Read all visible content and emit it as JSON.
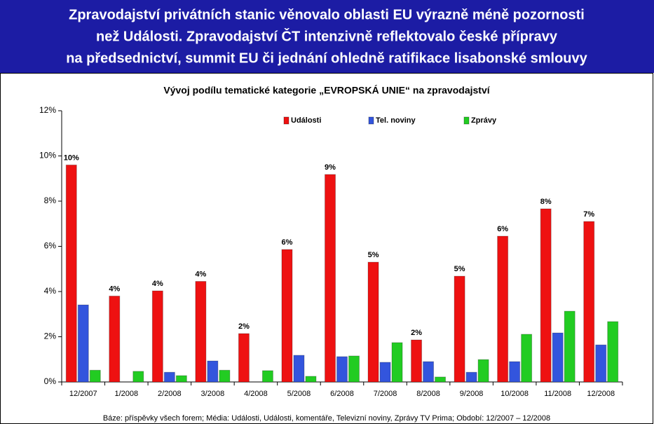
{
  "header": {
    "lines": [
      "Zpravodajství privátních stanic věnovalo oblasti EU výrazně méně pozornosti",
      "než Události. Zpravodajství ČT intenzivně reflektovalo české přípravy",
      "na předsednictví, summit EU či jednání ohledně ratifikace lisabonské smlouvy"
    ]
  },
  "chart_data": {
    "type": "bar",
    "title": "Vývoj podílu tematické kategorie „EVROPSKÁ UNIE“ na zpravodajství",
    "categories": [
      "12/2007",
      "1/2008",
      "2/2008",
      "3/2008",
      "4/2008",
      "5/2008",
      "6/2008",
      "7/2008",
      "8/2008",
      "9/2008",
      "10/2008",
      "11/2008",
      "12/2008"
    ],
    "series": [
      {
        "name": "Události",
        "color": "#ee1111",
        "values": [
          9.6,
          3.8,
          4.03,
          4.45,
          2.14,
          5.86,
          9.18,
          5.3,
          1.86,
          4.68,
          6.45,
          7.66,
          7.1
        ],
        "value_labels": [
          "10%",
          "4%",
          "4%",
          "4%",
          "2%",
          "6%",
          "9%",
          "5%",
          "2%",
          "5%",
          "6%",
          "8%",
          "7%"
        ]
      },
      {
        "name": "Tel. noviny",
        "color": "#3355dd",
        "values": [
          3.41,
          0,
          0.43,
          0.93,
          0,
          1.18,
          1.12,
          0.87,
          0.9,
          0.43,
          0.9,
          2.17,
          1.64
        ]
      },
      {
        "name": "Zprávy",
        "color": "#22cc22",
        "values": [
          0.52,
          0.47,
          0.28,
          0.52,
          0.5,
          0.25,
          1.15,
          1.74,
          0.22,
          0.99,
          2.11,
          3.13,
          2.67
        ]
      }
    ],
    "ylim": [
      0,
      12
    ],
    "yticks": [
      {
        "value": 0,
        "label": "0%"
      },
      {
        "value": 2,
        "label": "2%"
      },
      {
        "value": 4,
        "label": "4%"
      },
      {
        "value": 6,
        "label": "6%"
      },
      {
        "value": 8,
        "label": "8%"
      },
      {
        "value": 10,
        "label": "10%"
      },
      {
        "value": 12,
        "label": "12%"
      }
    ],
    "grid": false,
    "legend": "top",
    "footnote": "Báze: příspěvky všech forem; Média: Události, Události, komentáře, Televizní noviny, Zprávy TV Prima; Období:  12/2007 – 12/2008"
  }
}
